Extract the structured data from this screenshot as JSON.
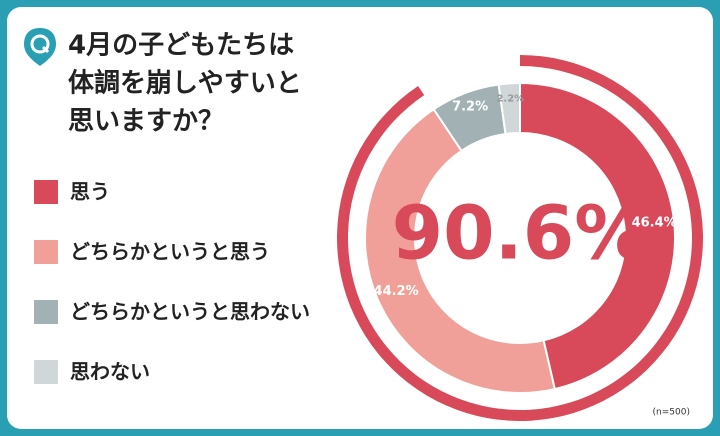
{
  "chart_data": {
    "type": "pie",
    "title": [
      "4月の子どもたちは",
      "体調を崩しやすいと",
      "思いますか？"
    ],
    "categories": [
      "思う",
      "どちらかというと思う",
      "どちらかというと思わない",
      "思わない"
    ],
    "values": [
      46.4,
      44.2,
      7.2,
      2.2
    ],
    "value_labels": [
      "46.4%",
      "44.2%",
      "7.2%",
      "2.2%"
    ],
    "colors": [
      "#d84a5a",
      "#f0a098",
      "#a1b1b4",
      "#cfd7d9"
    ],
    "center_label": "90.6%",
    "note": "(n=500)"
  }
}
